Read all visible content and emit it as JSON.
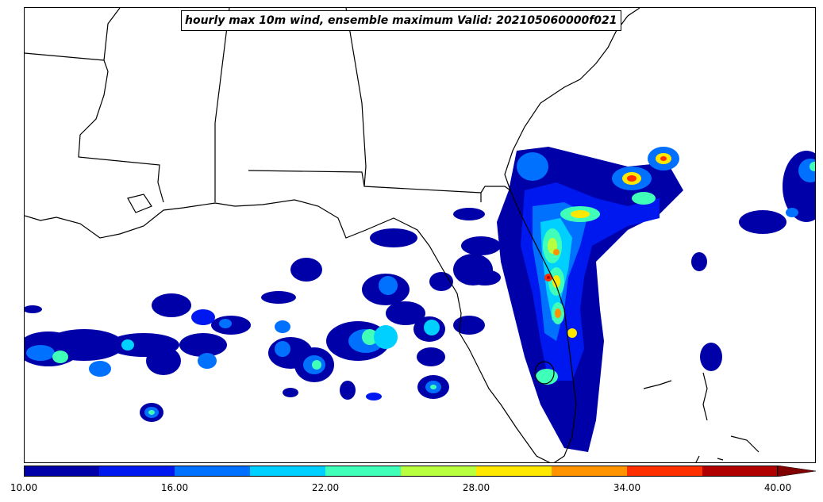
{
  "title": "hourly max 10m wind, ensemble maximum Valid: 202105060000f021",
  "colorbar": {
    "tick_labels": [
      "10.00",
      "16.00",
      "22.00",
      "28.00",
      "34.00",
      "40.00"
    ],
    "colors": [
      "#0000a8",
      "#0018f0",
      "#0070ff",
      "#00d0ff",
      "#40ffb8",
      "#b8ff40",
      "#ffe800",
      "#ff9400",
      "#ff3000",
      "#b00000"
    ],
    "extend_color": "#800000"
  },
  "map": {
    "region": "Southeast United States / Florida peninsula",
    "features": [
      "state-borders",
      "coastline",
      "wind-contours"
    ]
  }
}
